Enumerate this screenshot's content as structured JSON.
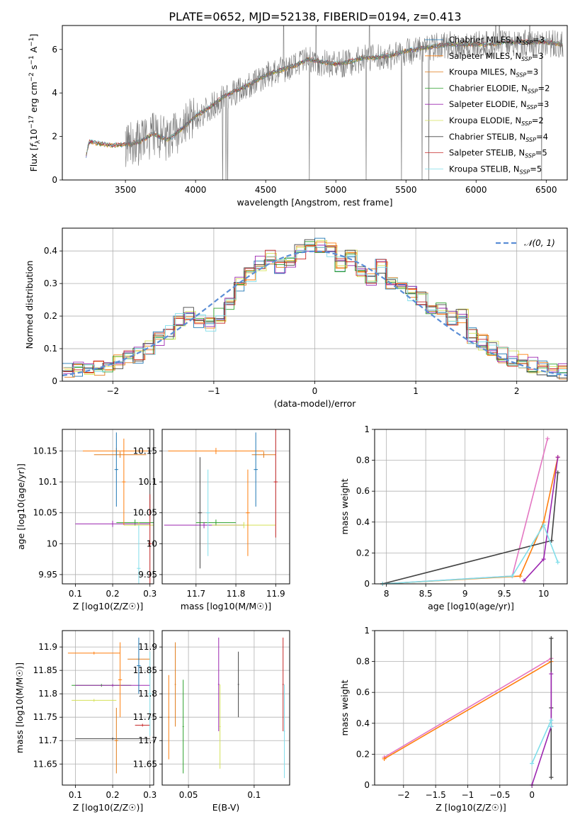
{
  "figure": {
    "title": "PLATE=0652, MJD=52138, FIBERID=0194, z=0.413"
  },
  "series_colors": [
    "#1f77b4",
    "#ff7f0e",
    "#e17c1b",
    "#2ca02c",
    "#9c27b0",
    "#d4e157",
    "#444444",
    "#c62828",
    "#80deea"
  ],
  "legend_labels": [
    {
      "name": "Chabrier MILES",
      "n": "N",
      "sub": "SSP",
      "eq": "=3"
    },
    {
      "name": "Salpeter MILES",
      "n": "N",
      "sub": "SSP",
      "eq": "=3"
    },
    {
      "name": "Kroupa MILES",
      "n": "N",
      "sub": "SSP",
      "eq": "=3"
    },
    {
      "name": "Chabrier ELODIE",
      "n": "N",
      "sub": "SSP",
      "eq": "=2"
    },
    {
      "name": "Salpeter ELODIE",
      "n": "N",
      "sub": "SSP",
      "eq": "=3"
    },
    {
      "name": "Kroupa ELODIE",
      "n": "N",
      "sub": "SSP",
      "eq": "=2"
    },
    {
      "name": "Chabrier STELIB",
      "n": "N",
      "sub": "SSP",
      "eq": "=4"
    },
    {
      "name": "Salpeter STELIB",
      "n": "N",
      "sub": "SSP",
      "eq": "=5"
    },
    {
      "name": "Kroupa STELIB",
      "n": "N",
      "sub": "SSP",
      "eq": "=5"
    }
  ],
  "chart_data": [
    {
      "id": "spectrum",
      "type": "line",
      "xlabel": "wavelength [Angstrom, rest frame]",
      "ylabel": "Flux [f_λ 10^-17 erg cm^-2 s^-1 A^-1]",
      "xlim": [
        3050,
        6650
      ],
      "ylim": [
        0,
        7.1
      ],
      "xticks": [
        3500,
        4000,
        4500,
        5000,
        5500,
        6000,
        6500
      ],
      "yticks": [
        0,
        2,
        4,
        6
      ],
      "data_points": [
        [
          3220,
          1.1
        ],
        [
          3240,
          1.7
        ],
        [
          3300,
          1.65
        ],
        [
          3400,
          1.55
        ],
        [
          3500,
          1.6
        ],
        [
          3600,
          1.7
        ],
        [
          3700,
          2.1
        ],
        [
          3800,
          1.8
        ],
        [
          3900,
          2.3
        ],
        [
          4000,
          2.9
        ],
        [
          4100,
          3.3
        ],
        [
          4200,
          3.8
        ],
        [
          4300,
          4.1
        ],
        [
          4400,
          4.4
        ],
        [
          4500,
          4.8
        ],
        [
          4600,
          5.0
        ],
        [
          4700,
          5.2
        ],
        [
          4800,
          5.5
        ],
        [
          4900,
          5.4
        ],
        [
          5000,
          5.3
        ],
        [
          5100,
          5.4
        ],
        [
          5200,
          5.6
        ],
        [
          5300,
          5.6
        ],
        [
          5400,
          5.7
        ],
        [
          5500,
          5.9
        ],
        [
          5600,
          6.0
        ],
        [
          5700,
          6.1
        ],
        [
          5800,
          6.2
        ],
        [
          5900,
          6.2
        ],
        [
          6000,
          6.2
        ],
        [
          6100,
          6.2
        ],
        [
          6200,
          6.3
        ],
        [
          6300,
          6.3
        ],
        [
          6400,
          6.3
        ],
        [
          6500,
          6.3
        ],
        [
          6600,
          6.2
        ]
      ],
      "legend": "top-right"
    },
    {
      "id": "residuals",
      "type": "line",
      "xlabel": "(data-model)/error",
      "ylabel": "Normed distribution",
      "xlim": [
        -2.5,
        2.5
      ],
      "ylim": [
        0,
        0.47
      ],
      "xticks": [
        -2,
        -1,
        0,
        1,
        2
      ],
      "yticks": [
        0.0,
        0.1,
        0.2,
        0.3,
        0.4
      ],
      "normal_legend": "𝒩(0, 1)",
      "hist_values": [
        0.03,
        0.035,
        0.045,
        0.04,
        0.045,
        0.06,
        0.07,
        0.08,
        0.1,
        0.13,
        0.15,
        0.19,
        0.21,
        0.18,
        0.17,
        0.2,
        0.24,
        0.3,
        0.33,
        0.36,
        0.38,
        0.35,
        0.37,
        0.4,
        0.41,
        0.42,
        0.4,
        0.36,
        0.38,
        0.33,
        0.32,
        0.35,
        0.3,
        0.29,
        0.27,
        0.25,
        0.21,
        0.22,
        0.19,
        0.2,
        0.14,
        0.12,
        0.1,
        0.08,
        0.07,
        0.06,
        0.05,
        0.04,
        0.035,
        0.03
      ],
      "bins": {
        "start": -2.5,
        "width": 0.1
      },
      "grid": true
    },
    {
      "id": "age_vs_Z",
      "type": "scatter",
      "xlabel": "Z [log10(Z/Z☉)]",
      "ylabel": "age  [log10(age/yr)]",
      "xlim": [
        0.065,
        0.31
      ],
      "ylim": [
        9.935,
        10.185
      ],
      "xticks": [
        0.1,
        0.2,
        0.3
      ],
      "yticks": [
        9.95,
        10.0,
        10.05,
        10.1,
        10.15
      ],
      "points": [
        [
          0.21,
          10.15,
          0.09,
          0.005
        ],
        [
          0.22,
          10.144,
          0.07,
          0.005
        ],
        [
          0.26,
          10.034,
          0.05,
          0.005
        ],
        [
          0.2,
          10.032,
          0.1,
          0.005
        ],
        [
          0.27,
          10.03,
          0.04,
          0.005
        ],
        [
          0.3,
          10.15,
          0.005,
          0.1
        ],
        [
          0.3,
          10.0,
          0.005,
          0.08
        ],
        [
          0.27,
          9.96,
          0.005,
          0.07
        ],
        [
          0.21,
          10.12,
          0.005,
          0.06
        ],
        [
          0.23,
          10.1,
          0.005,
          0.07
        ]
      ],
      "grid": true
    },
    {
      "id": "age_vs_mass",
      "type": "scatter",
      "xlabel": "mass [log10(M/M☉)]",
      "ylabel": "",
      "xlim": [
        11.615,
        11.935
      ],
      "ylim": [
        9.935,
        10.185
      ],
      "xticks": [
        11.7,
        11.8,
        11.9
      ],
      "yticks": [
        9.95,
        10.0,
        10.05,
        10.1,
        10.15
      ],
      "points": [
        [
          11.75,
          10.15,
          0.12,
          0.005
        ],
        [
          11.87,
          10.144,
          0.03,
          0.005
        ],
        [
          11.75,
          10.034,
          0.05,
          0.005
        ],
        [
          11.72,
          10.03,
          0.1,
          0.005
        ],
        [
          11.82,
          10.03,
          0.08,
          0.005
        ],
        [
          11.71,
          10.05,
          0.005,
          0.09
        ],
        [
          11.9,
          10.1,
          0.005,
          0.09
        ],
        [
          11.73,
          10.05,
          0.005,
          0.07
        ],
        [
          11.85,
          10.12,
          0.005,
          0.06
        ],
        [
          11.83,
          10.05,
          0.005,
          0.07
        ]
      ],
      "grid": true
    },
    {
      "id": "weight_vs_age",
      "type": "line",
      "xlabel": "age  [log10(age/yr)]",
      "ylabel": "mass weight",
      "xlim": [
        7.85,
        10.3
      ],
      "ylim": [
        0,
        1.0
      ],
      "xticks": [
        8.0,
        8.5,
        9.0,
        9.5,
        10.0
      ],
      "yticks": [
        0.0,
        0.2,
        0.4,
        0.6,
        0.8,
        1.0
      ],
      "series": [
        {
          "x": [
            7.95,
            9.6,
            10.05
          ],
          "y": [
            0.0,
            0.05,
            0.94
          ]
        },
        {
          "x": [
            7.95,
            9.7,
            10.0,
            10.18
          ],
          "y": [
            0.0,
            0.05,
            0.4,
            0.82
          ]
        },
        {
          "x": [
            7.95,
            10.1,
            10.18
          ],
          "y": [
            0.0,
            0.28,
            0.72
          ]
        },
        {
          "x": [
            9.75,
            10.0,
            10.18
          ],
          "y": [
            0.02,
            0.16,
            0.82
          ]
        },
        {
          "x": [
            7.95,
            9.6,
            10.0,
            10.18
          ],
          "y": [
            0.0,
            0.05,
            0.38,
            0.14
          ]
        }
      ],
      "grid": true
    },
    {
      "id": "mass_vs_Z",
      "type": "scatter",
      "xlabel": "Z [log10(Z/Z☉)]",
      "ylabel": "mass [log10(M/M☉)]",
      "xlim": [
        0.065,
        0.31
      ],
      "ylim": [
        11.605,
        11.935
      ],
      "xticks": [
        0.1,
        0.2,
        0.3
      ],
      "yticks": [
        11.65,
        11.7,
        11.75,
        11.8,
        11.85,
        11.9
      ],
      "points": [
        [
          0.15,
          11.887,
          0.07,
          0.003
        ],
        [
          0.27,
          11.874,
          0.03,
          0.003
        ],
        [
          0.17,
          11.818,
          0.08,
          0.003
        ],
        [
          0.2,
          11.818,
          0.1,
          0.003
        ],
        [
          0.15,
          11.786,
          0.06,
          0.003
        ],
        [
          0.2,
          11.704,
          0.1,
          0.003
        ],
        [
          0.28,
          11.733,
          0.02,
          0.003
        ],
        [
          0.3,
          11.8,
          0.005,
          0.09
        ],
        [
          0.27,
          11.86,
          0.005,
          0.06
        ],
        [
          0.22,
          11.83,
          0.005,
          0.08
        ],
        [
          0.21,
          11.7,
          0.005,
          0.07
        ]
      ],
      "grid": true
    },
    {
      "id": "mass_vs_EBV",
      "type": "scatter",
      "xlabel": "E(B-V)",
      "ylabel": "",
      "xlim": [
        0.03,
        0.127
      ],
      "ylim": [
        11.605,
        11.935
      ],
      "xticks": [
        0.05,
        0.1
      ],
      "yticks": [
        11.65,
        11.7,
        11.75,
        11.8,
        11.85,
        11.9
      ],
      "points": [
        [
          0.035,
          11.75,
          0.0005,
          0.09
        ],
        [
          0.04,
          11.82,
          0.0005,
          0.09
        ],
        [
          0.046,
          11.73,
          0.0005,
          0.1
        ],
        [
          0.073,
          11.82,
          0.0005,
          0.1
        ],
        [
          0.074,
          11.73,
          0.0005,
          0.09
        ],
        [
          0.088,
          11.82,
          0.0005,
          0.07
        ],
        [
          0.122,
          11.82,
          0.0005,
          0.1
        ],
        [
          0.123,
          11.72,
          0.0005,
          0.1
        ]
      ],
      "grid": true
    },
    {
      "id": "weight_vs_Z",
      "type": "line",
      "xlabel": "Z [log10(Z/Z☉)]",
      "ylabel": "mass weight",
      "xlim": [
        -2.45,
        0.55
      ],
      "ylim": [
        0,
        1.0
      ],
      "xticks": [
        -2.0,
        -1.5,
        -1.0,
        -0.5,
        0.0
      ],
      "yticks": [
        0.0,
        0.2,
        0.4,
        0.6,
        0.8,
        1.0
      ],
      "series": [
        {
          "x": [
            -2.3,
            0.3
          ],
          "y": [
            0.18,
            0.82
          ]
        },
        {
          "x": [
            -2.3,
            0.3
          ],
          "y": [
            0.17,
            0.8
          ]
        },
        {
          "x": [
            0.3,
            0.3,
            0.3
          ],
          "y": [
            0.05,
            0.5,
            0.95
          ]
        },
        {
          "x": [
            0.0,
            0.3,
            0.3
          ],
          "y": [
            0.0,
            0.38,
            0.72
          ]
        },
        {
          "x": [
            0.0,
            0.3,
            0.3
          ],
          "y": [
            0.14,
            0.42,
            0.38
          ]
        }
      ],
      "grid": true
    }
  ]
}
